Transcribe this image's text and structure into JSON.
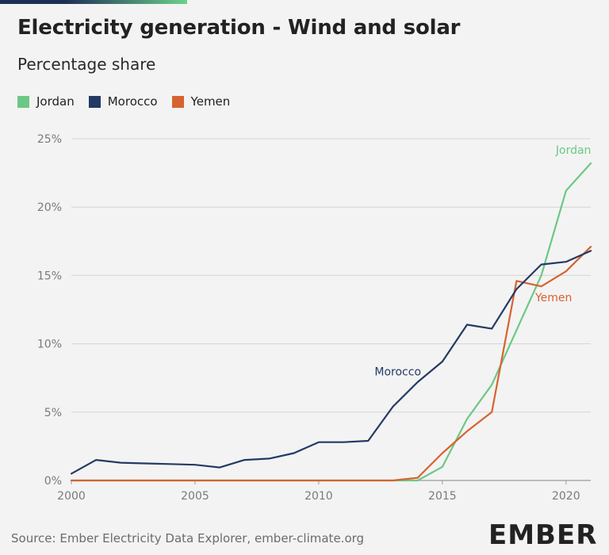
{
  "title": "Electricity generation - Wind and solar",
  "subtitle": "Percentage share",
  "source": "Source: Ember Electricity Data Explorer, ember-climate.org",
  "logo": "EMBER",
  "chart_data": {
    "type": "line",
    "title": "Electricity generation - Wind and solar",
    "subtitle": "Percentage share",
    "xlim": [
      2000,
      2021
    ],
    "ylim": [
      0,
      25
    ],
    "x_ticks": [
      2000,
      2005,
      2010,
      2015,
      2020
    ],
    "x_tick_labels": [
      "2000",
      "2005",
      "2010",
      "2015",
      "2020"
    ],
    "y_ticks": [
      0,
      5,
      10,
      15,
      20,
      25
    ],
    "y_tick_labels": [
      "0%",
      "5%",
      "10%",
      "15%",
      "20%",
      "25%"
    ],
    "grid": true,
    "legend_position": "top-left",
    "x": [
      2000,
      2001,
      2002,
      2003,
      2004,
      2005,
      2006,
      2007,
      2008,
      2009,
      2010,
      2011,
      2012,
      2013,
      2014,
      2015,
      2016,
      2017,
      2018,
      2019,
      2020,
      2021
    ],
    "series": [
      {
        "name": "Jordan",
        "color": "#6cc884",
        "values": [
          0,
          0,
          0,
          0,
          0,
          0,
          0,
          0,
          0,
          0,
          0,
          0,
          0,
          0,
          0,
          1.0,
          4.5,
          7.0,
          11.0,
          15.0,
          21.2,
          23.2
        ]
      },
      {
        "name": "Morocco",
        "color": "#243a64",
        "values": [
          0.5,
          1.5,
          1.3,
          1.25,
          1.2,
          1.15,
          0.95,
          1.5,
          1.6,
          2.0,
          2.8,
          2.8,
          2.9,
          5.4,
          7.2,
          8.7,
          11.4,
          11.1,
          14.0,
          15.8,
          16.0,
          16.8
        ]
      },
      {
        "name": "Yemen",
        "color": "#d6632f",
        "values": [
          0,
          0,
          0,
          0,
          0,
          0,
          0,
          0,
          0,
          0,
          0,
          0,
          0,
          0,
          0.2,
          2.0,
          3.6,
          5.0,
          14.6,
          14.2,
          15.3,
          17.1
        ]
      }
    ],
    "annotations": [
      {
        "text": "Jordan",
        "series": "Jordan",
        "x": 2020.3,
        "y": 23.9
      },
      {
        "text": "Morocco",
        "series": "Morocco",
        "x": 2013.2,
        "y": 7.7
      },
      {
        "text": "Yemen",
        "series": "Yemen",
        "x": 2019.5,
        "y": 13.1
      }
    ]
  }
}
